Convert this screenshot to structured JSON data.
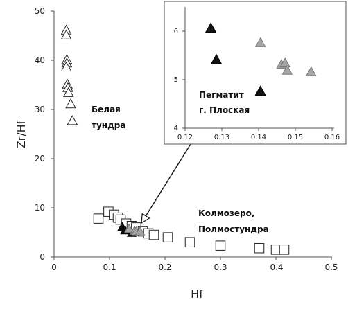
{
  "chart_data": [
    {
      "type": "scatter",
      "xlabel": "Hf",
      "ylabel": "Zr/Hf",
      "xlim": [
        0,
        0.5
      ],
      "ylim": [
        0,
        50
      ],
      "xticks": [
        "0",
        "0.1",
        "0.2",
        "0.3",
        "0.4",
        "0.5"
      ],
      "yticks": [
        "0",
        "10",
        "20",
        "30",
        "40",
        "50"
      ],
      "grid": false,
      "annotations": [
        {
          "id": "belaya",
          "lines": [
            "Белая",
            "тундра"
          ]
        },
        {
          "id": "kolmozero",
          "lines": [
            "Колмозеро,",
            "Полмостундра"
          ]
        }
      ],
      "series": [
        {
          "marker": "open-triangle",
          "points": [
            [
              0.022,
              46
            ],
            [
              0.022,
              45
            ],
            [
              0.023,
              40
            ],
            [
              0.023,
              39.3
            ],
            [
              0.022,
              38.5
            ],
            [
              0.024,
              35
            ],
            [
              0.025,
              34.3
            ],
            [
              0.026,
              33.3
            ],
            [
              0.03,
              31
            ],
            [
              0.033,
              27.6
            ]
          ]
        },
        {
          "marker": "open-square",
          "points": [
            [
              0.08,
              7.8
            ],
            [
              0.098,
              9.2
            ],
            [
              0.108,
              8.6
            ],
            [
              0.115,
              8
            ],
            [
              0.12,
              7.6
            ],
            [
              0.13,
              6.8
            ],
            [
              0.14,
              6.3
            ],
            [
              0.148,
              6
            ],
            [
              0.16,
              5.2
            ],
            [
              0.17,
              4.8
            ],
            [
              0.18,
              4.5
            ],
            [
              0.205,
              4
            ],
            [
              0.245,
              3
            ],
            [
              0.3,
              2.3
            ],
            [
              0.37,
              1.8
            ],
            [
              0.4,
              1.5
            ],
            [
              0.415,
              1.5
            ]
          ]
        },
        {
          "marker": "filled-triangle-black",
          "points": [
            [
              0.123,
              6
            ],
            [
              0.128,
              5.3
            ],
            [
              0.14,
              4.8
            ]
          ]
        },
        {
          "marker": "filled-triangle-gray",
          "points": [
            [
              0.135,
              5.6
            ],
            [
              0.145,
              5.2
            ],
            [
              0.148,
              5.1
            ],
            [
              0.155,
              5.1
            ]
          ]
        }
      ]
    },
    {
      "type": "scatter",
      "xlim": [
        0.12,
        0.16
      ],
      "ylim": [
        4,
        6.5
      ],
      "xticks": [
        "0.12",
        "0.13",
        "0.14",
        "0.15",
        "0.16"
      ],
      "yticks": [
        "4",
        "5",
        "6"
      ],
      "grid": false,
      "annotation": {
        "lines": [
          "Пегматит",
          "г. Плоская"
        ]
      },
      "series": [
        {
          "marker": "filled-triangle-black",
          "points": [
            [
              0.127,
              6.05
            ],
            [
              0.1285,
              5.4
            ],
            [
              0.1405,
              4.75
            ]
          ]
        },
        {
          "marker": "filled-triangle-gray",
          "points": [
            [
              0.1405,
              5.75
            ],
            [
              0.1462,
              5.3
            ],
            [
              0.1472,
              5.33
            ],
            [
              0.1478,
              5.18
            ],
            [
              0.1543,
              5.15
            ]
          ]
        }
      ]
    }
  ],
  "colors": {
    "axis": "#555555",
    "black_marker": "#111111",
    "gray_marker": "#a6a6a6"
  }
}
